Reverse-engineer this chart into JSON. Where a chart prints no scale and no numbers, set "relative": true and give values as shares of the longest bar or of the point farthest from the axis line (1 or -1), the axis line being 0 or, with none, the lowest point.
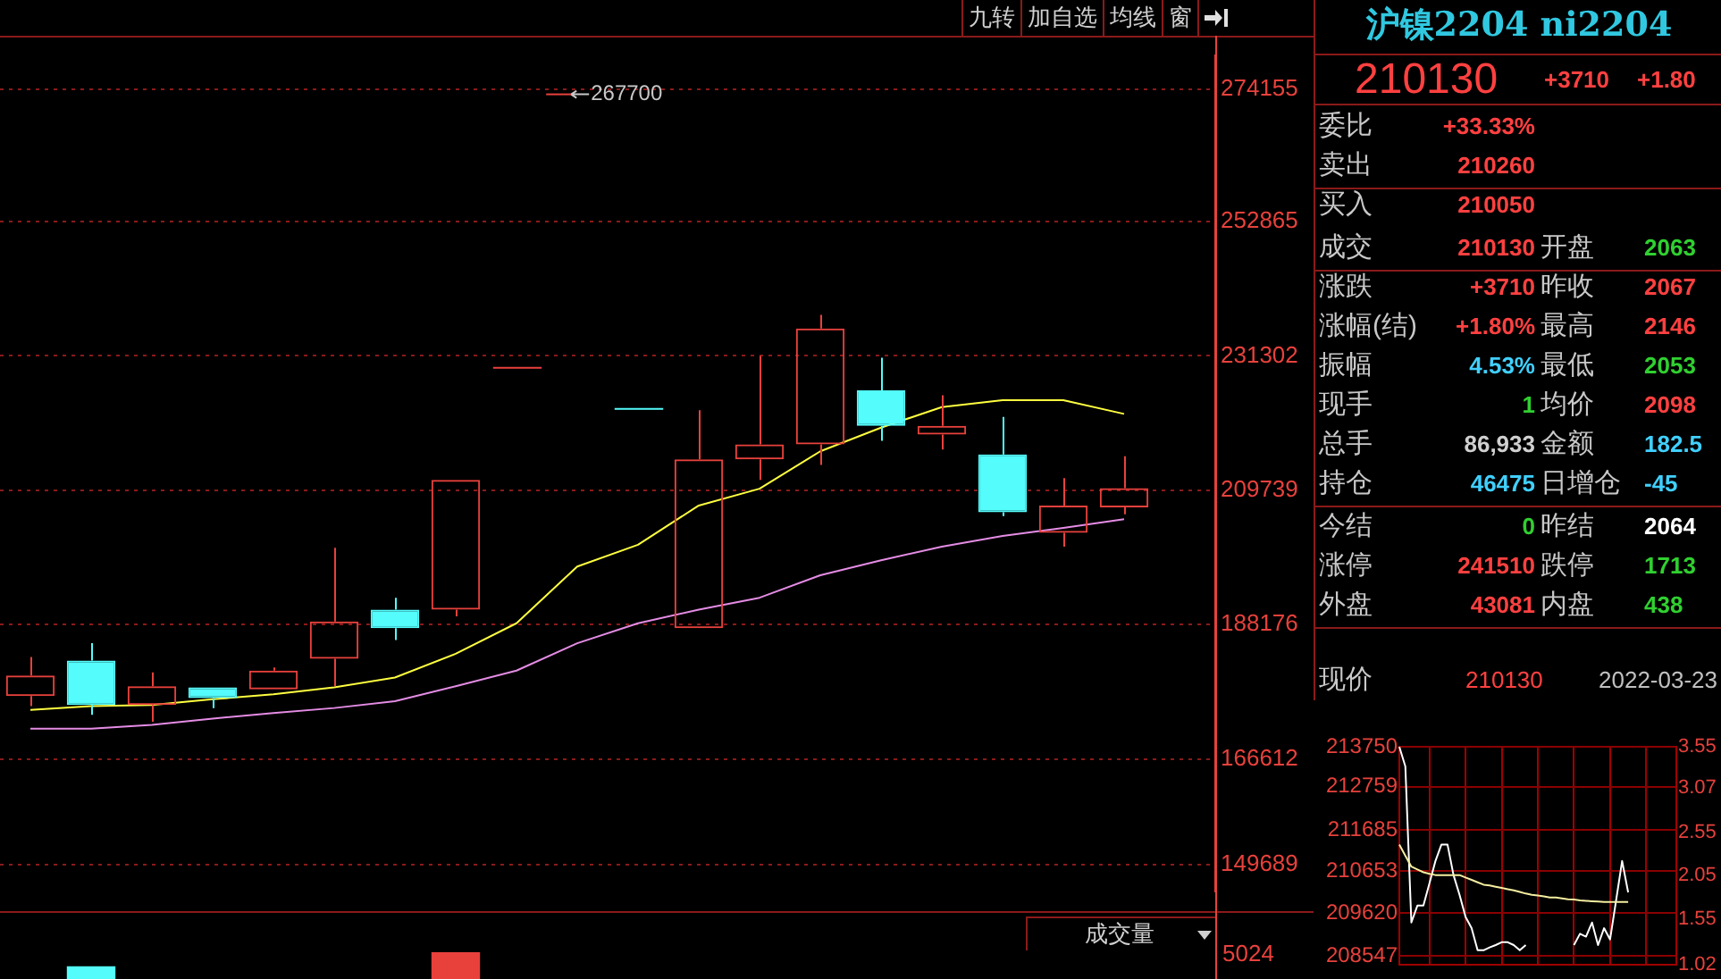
{
  "chart_data": [
    {
      "type": "other",
      "annotations": [
        "九转",
        "加自选",
        "均线",
        "窗"
      ]
    },
    {
      "type": "candlestick",
      "categories": [
        null,
        null,
        null,
        null,
        null,
        null,
        null,
        null,
        null,
        null,
        null,
        null,
        null,
        null,
        null,
        null,
        null,
        null,
        null,
        null
      ],
      "ohlc": [
        [
          176700,
          183000,
          175100,
          180000
        ],
        [
          182400,
          185200,
          173700,
          175300
        ],
        [
          175300,
          180500,
          172600,
          178300
        ],
        [
          178100,
          178100,
          174800,
          176400
        ],
        [
          177800,
          181300,
          177800,
          180800
        ],
        [
          182700,
          200500,
          178300,
          188700
        ],
        [
          190600,
          192500,
          185700,
          187600
        ],
        [
          190600,
          211400,
          189500,
          211400
        ],
        [
          229400,
          229400,
          229400,
          229400
        ],
        null,
        [
          222800,
          222800,
          222800,
          222800
        ],
        [
          187600,
          222600,
          187600,
          214700
        ],
        [
          214700,
          231300,
          211400,
          217100
        ],
        [
          217100,
          237900,
          213800,
          235700
        ],
        [
          225800,
          231000,
          217700,
          220100
        ],
        [
          218700,
          225000,
          216300,
          220100
        ],
        [
          215500,
          221500,
          205600,
          206200
        ],
        [
          202900,
          211700,
          200700,
          207300
        ],
        [
          207000,
          215200,
          205900,
          210100
        ],
        null
      ],
      "colors": [
        "#e8413c",
        "#54fcfc",
        "#e8413c",
        "#54fcfc",
        "#e8413c",
        "#e8413c",
        "#54fcfc",
        "#e8413c",
        "#e8413c",
        null,
        "#54fcfc",
        "#e8413c",
        "#e8413c",
        "#e8413c",
        "#54fcfc",
        "#e8413c",
        "#54fcfc",
        "#e8413c",
        "#e8413c",
        null
      ],
      "series": [
        {
          "type": "line",
          "color": "#ffff40",
          "values": [
            174500,
            175100,
            175300,
            176200,
            177000,
            178100,
            179700,
            183500,
            188400,
            197500,
            201000,
            207300,
            210000,
            216000,
            219800,
            223100,
            224200,
            224200,
            222000,
            null
          ]
        },
        {
          "type": "line",
          "color": "#e58ce5",
          "values": [
            171500,
            171500,
            172100,
            173100,
            174000,
            174800,
            175900,
            178300,
            180800,
            185200,
            188400,
            190600,
            192500,
            196100,
            198500,
            200700,
            202400,
            203700,
            205100,
            null
          ]
        }
      ],
      "ylim": [
        145300,
        279600
      ],
      "yticks": [
        274155,
        252865,
        231302,
        209739,
        188176,
        166612,
        149689
      ],
      "grid": "y",
      "legend": false,
      "annotations": [
        "267700"
      ]
    },
    {
      "type": "bar",
      "relative": true,
      "categories": [
        null,
        null,
        null,
        null,
        null,
        null,
        null,
        null,
        null,
        null,
        null,
        null,
        null,
        null,
        null,
        null,
        null,
        null,
        null,
        null
      ],
      "values": [
        null,
        0.9,
        null,
        null,
        null,
        null,
        null,
        1,
        null,
        null,
        null,
        null,
        null,
        null,
        null,
        null,
        null,
        null,
        null,
        null
      ],
      "colors": [
        "#e8413c",
        "#54fcfc",
        "#e8413c",
        "#54fcfc",
        "#e8413c",
        "#e8413c",
        "#54fcfc",
        "#e8413c",
        "#e8413c",
        "#e8413c",
        "#54fcfc",
        "#e8413c",
        "#e8413c",
        "#e8413c",
        "#54fcfc",
        "#e8413c",
        "#54fcfc",
        "#e8413c",
        "#e8413c",
        "#e8413c"
      ],
      "annotations": [
        "成交量",
        "5024"
      ]
    },
    {
      "type": "other",
      "title": "沪镍2204 ni2204",
      "annotations": [
        "210130",
        "+3710",
        "+1.80",
        "委比",
        "+33.33%",
        "卖出",
        "210260",
        "买入",
        "210050",
        "成交",
        "210130",
        "开盘",
        "2063",
        "涨跌",
        "+3710",
        "昨收",
        "2067",
        "涨幅(结)",
        "+1.80%",
        "最高",
        "2146",
        "振幅",
        "4.53%",
        "最低",
        "2053",
        "现手",
        "1",
        "均价",
        "2098",
        "总手",
        "86,933",
        "金额",
        "182.5",
        "持仓",
        "46475",
        "日增仓",
        "-45",
        "今结",
        "0",
        "昨结",
        "2064",
        "涨停",
        "241510",
        "跌停",
        "1713",
        "外盘",
        "43081",
        "内盘",
        "438",
        "现价",
        "210130",
        "2022-03-23"
      ]
    },
    {
      "type": "line",
      "categories": [
        null,
        null,
        null,
        null,
        null,
        null,
        null,
        null,
        null,
        null,
        null,
        null,
        null,
        null,
        null,
        null,
        null,
        null,
        null,
        null,
        null,
        null,
        null,
        null,
        null,
        null,
        null,
        null,
        null,
        null,
        null,
        null,
        null,
        null,
        null,
        null,
        null,
        null,
        null,
        null,
        null,
        null,
        null,
        null,
        null,
        null,
        null
      ],
      "series": [
        {
          "color": "#f5eea0",
          "values": [
            211320,
            211040,
            210770,
            210700,
            210630,
            210590,
            210560,
            210560,
            210560,
            210560,
            210560,
            210500,
            210440,
            210380,
            210320,
            210300,
            210270,
            210240,
            210210,
            210180,
            210140,
            210100,
            210070,
            210050,
            210030,
            210000,
            210000,
            209980,
            209960,
            209950,
            209930,
            209920,
            209910,
            209900,
            209890,
            209890,
            209890,
            209890,
            209890,
            null,
            null,
            null,
            null,
            null,
            null,
            null,
            null
          ]
        },
        {
          "color": "#ffffff",
          "values": [
            213750,
            213260,
            209380,
            209800,
            209800,
            210350,
            210910,
            211320,
            211320,
            210560,
            210070,
            209520,
            209240,
            208690,
            208690,
            208760,
            208820,
            208890,
            208890,
            208820,
            208690,
            208820,
            null,
            null,
            null,
            null,
            null,
            null,
            null,
            208820,
            209100,
            209030,
            209380,
            208820,
            209240,
            208960,
            209930,
            210910,
            210130,
            null,
            null,
            null,
            null,
            null,
            null,
            null,
            null
          ]
        }
      ],
      "ylim": [
        208340,
        213750
      ],
      "yticks": [
        213750,
        212759,
        211685,
        210653,
        209620,
        208547
      ],
      "y2lim": [
        1.02,
        3.55
      ],
      "y2ticks": [
        3.55,
        3.07,
        2.55,
        2.05,
        1.55,
        1.02
      ],
      "grid": true,
      "legend": false
    }
  ]
}
